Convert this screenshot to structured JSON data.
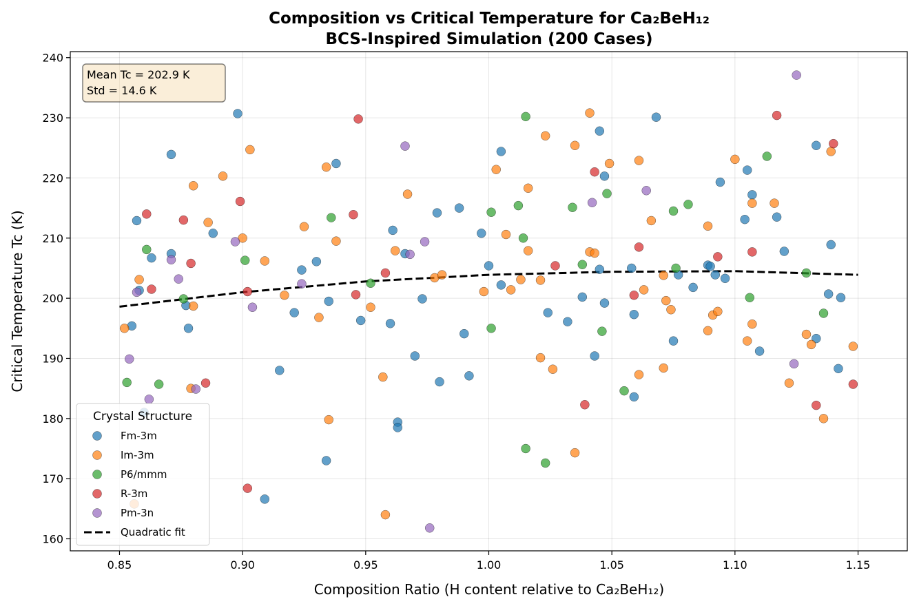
{
  "chart_data": {
    "type": "scatter",
    "title_line1": "Composition vs Critical Temperature for Ca₂BeH₁₂",
    "title_line2": "BCS-Inspired Simulation (200 Cases)",
    "xlabel": "Composition Ratio (H content relative to Ca₂BeH₁₂)",
    "ylabel": "Critical Temperature Tc (K)",
    "xlim": [
      0.83,
      1.17
    ],
    "ylim": [
      158,
      241
    ],
    "x_ticks": [
      "0.85",
      "0.90",
      "0.95",
      "1.00",
      "1.05",
      "1.10",
      "1.15"
    ],
    "y_ticks": [
      "160",
      "170",
      "180",
      "190",
      "200",
      "210",
      "220",
      "230",
      "240"
    ],
    "grid": true,
    "legend_title": "Crystal Structure",
    "legend_placement": "lower-left",
    "stats_box": {
      "line1": "Mean Tc = 202.9 K",
      "line2": "Std = 14.6 K",
      "placement": "top-left"
    },
    "fit": {
      "name": "Quadratic fit",
      "x": [
        0.85,
        0.9,
        0.95,
        1.0,
        1.05,
        1.1,
        1.15
      ],
      "y": [
        198.6,
        201.0,
        202.8,
        203.9,
        204.4,
        204.5,
        203.9
      ]
    },
    "series": [
      {
        "name": "Fm-3m",
        "color": "#1f77b4",
        "x": [
          0.855,
          0.857,
          0.858,
          0.86,
          0.863,
          0.871,
          0.871,
          0.877,
          0.878,
          0.888,
          0.898,
          0.909,
          0.915,
          0.921,
          0.924,
          0.93,
          0.934,
          0.935,
          0.938,
          0.948,
          0.96,
          0.961,
          0.963,
          0.963,
          0.966,
          0.97,
          0.973,
          0.979,
          0.98,
          0.988,
          0.99,
          0.992,
          0.997,
          1.0,
          1.005,
          1.005,
          1.024,
          1.032,
          1.038,
          1.043,
          1.045,
          1.045,
          1.047,
          1.047,
          1.058,
          1.059,
          1.059,
          1.068,
          1.075,
          1.077,
          1.083,
          1.089,
          1.09,
          1.092,
          1.094,
          1.096,
          1.104,
          1.105,
          1.107,
          1.11,
          1.117,
          1.12,
          1.133,
          1.133,
          1.138,
          1.139,
          1.142,
          1.143
        ],
        "y": [
          195.4,
          212.9,
          201.3,
          181.0,
          206.7,
          223.9,
          207.4,
          198.8,
          195.0,
          210.8,
          230.7,
          166.6,
          188.0,
          197.6,
          204.7,
          206.1,
          173.0,
          199.5,
          222.4,
          196.3,
          195.8,
          211.3,
          179.4,
          178.5,
          207.4,
          190.4,
          199.9,
          214.2,
          186.1,
          215.0,
          194.1,
          187.1,
          210.8,
          205.4,
          224.4,
          202.2,
          197.6,
          196.1,
          200.2,
          190.4,
          204.8,
          227.8,
          220.3,
          199.2,
          205.0,
          183.6,
          197.3,
          230.1,
          192.9,
          203.9,
          201.8,
          205.5,
          205.3,
          203.9,
          219.3,
          203.3,
          213.1,
          221.3,
          217.2,
          191.2,
          213.5,
          207.8,
          225.4,
          193.3,
          200.7,
          208.9,
          188.3,
          200.1
        ]
      },
      {
        "name": "Im-3m",
        "color": "#ff7f0e",
        "x": [
          0.852,
          0.856,
          0.858,
          0.879,
          0.88,
          0.88,
          0.886,
          0.892,
          0.9,
          0.903,
          0.909,
          0.917,
          0.925,
          0.931,
          0.934,
          0.935,
          0.938,
          0.952,
          0.957,
          0.958,
          0.962,
          0.967,
          0.978,
          0.981,
          0.998,
          1.003,
          1.007,
          1.009,
          1.013,
          1.016,
          1.016,
          1.021,
          1.021,
          1.023,
          1.026,
          1.035,
          1.035,
          1.041,
          1.041,
          1.043,
          1.049,
          1.061,
          1.061,
          1.063,
          1.066,
          1.071,
          1.071,
          1.072,
          1.074,
          1.089,
          1.089,
          1.091,
          1.093,
          1.1,
          1.105,
          1.107,
          1.107,
          1.116,
          1.122,
          1.129,
          1.131,
          1.136,
          1.139,
          1.148
        ],
        "y": [
          195.0,
          165.8,
          203.1,
          185.0,
          218.7,
          198.7,
          212.6,
          220.3,
          210.0,
          224.7,
          206.2,
          200.5,
          211.9,
          196.8,
          221.8,
          179.8,
          209.5,
          198.5,
          186.9,
          164.0,
          207.9,
          217.3,
          203.4,
          203.9,
          201.1,
          221.4,
          210.6,
          201.4,
          203.1,
          218.3,
          207.9,
          190.1,
          203.0,
          227.0,
          188.2,
          225.4,
          174.3,
          230.8,
          207.7,
          207.5,
          222.4,
          222.9,
          187.3,
          201.4,
          212.9,
          188.4,
          203.8,
          199.6,
          198.1,
          212.0,
          194.6,
          197.2,
          197.8,
          223.1,
          192.9,
          195.7,
          215.8,
          215.8,
          185.9,
          194.0,
          192.3,
          180.0,
          224.4,
          192.0
        ]
      },
      {
        "name": "P6/mmm",
        "color": "#2ca02c",
        "x": [
          0.853,
          0.861,
          0.866,
          0.876,
          0.901,
          0.936,
          0.952,
          1.001,
          1.001,
          1.012,
          1.014,
          1.015,
          1.015,
          1.023,
          1.034,
          1.038,
          1.046,
          1.048,
          1.055,
          1.075,
          1.076,
          1.081,
          1.106,
          1.113,
          1.129,
          1.136
        ],
        "y": [
          186.0,
          208.1,
          185.7,
          199.9,
          206.3,
          213.4,
          202.5,
          214.3,
          195.0,
          215.4,
          210.0,
          175.0,
          230.2,
          172.6,
          215.1,
          205.6,
          194.5,
          217.4,
          184.6,
          214.5,
          205.0,
          215.6,
          200.1,
          223.6,
          204.2,
          197.5
        ]
      },
      {
        "name": "R-3m",
        "color": "#d62728",
        "x": [
          0.861,
          0.863,
          0.876,
          0.879,
          0.885,
          0.899,
          0.902,
          0.902,
          0.945,
          0.946,
          0.947,
          0.958,
          1.027,
          1.039,
          1.043,
          1.059,
          1.061,
          1.093,
          1.107,
          1.117,
          1.133,
          1.14,
          1.148
        ],
        "y": [
          214.0,
          201.5,
          213.0,
          205.8,
          185.9,
          216.1,
          201.1,
          168.4,
          213.9,
          200.6,
          229.8,
          204.2,
          205.4,
          182.3,
          221.0,
          200.5,
          208.5,
          206.9,
          207.7,
          230.4,
          182.2,
          225.7,
          185.7
        ]
      },
      {
        "name": "Pm-3n",
        "color": "#9467bd",
        "x": [
          0.854,
          0.857,
          0.862,
          0.871,
          0.874,
          0.881,
          0.897,
          0.904,
          0.924,
          0.966,
          0.968,
          0.974,
          0.976,
          1.042,
          1.064,
          1.124,
          1.125
        ],
        "y": [
          189.9,
          201.0,
          183.2,
          206.4,
          203.2,
          184.9,
          209.4,
          198.5,
          202.4,
          225.3,
          207.3,
          209.4,
          161.8,
          215.9,
          217.9,
          189.1,
          237.1
        ]
      }
    ]
  }
}
